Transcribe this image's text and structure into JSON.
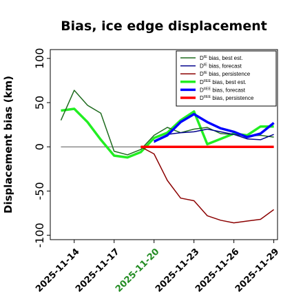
{
  "chart_data": {
    "type": "line",
    "title": "Bias, ice edge displacement",
    "ylabel": "Displacement bias (km)",
    "xlabel": "",
    "ylim": [
      -105,
      110
    ],
    "yticks": [
      -100,
      -50,
      0,
      50,
      100
    ],
    "xticks": [
      "2025-11-14",
      "2025-11-17",
      "2025-11-20",
      "2025-11-23",
      "2025-11-26",
      "2025-11-29"
    ],
    "highlight_xtick": "2025-11-20",
    "highlight_color": "#228b22",
    "x": [
      "2025-11-13",
      "2025-11-14",
      "2025-11-15",
      "2025-11-16",
      "2025-11-17",
      "2025-11-18",
      "2025-11-19",
      "2025-11-20",
      "2025-11-21",
      "2025-11-22",
      "2025-11-23",
      "2025-11-24",
      "2025-11-25",
      "2025-11-26",
      "2025-11-27",
      "2025-11-28",
      "2025-11-29"
    ],
    "reference_line": {
      "y": 0,
      "x_start": "2025-11-13",
      "x_end": "2025-11-29",
      "color": "#555555"
    },
    "legend_position": "top-right",
    "series": [
      {
        "name": "D^IE bias, best est.",
        "sup": "IE",
        "label": "bias, best est.",
        "color": "#1e6b1e",
        "width": 1.5,
        "values": [
          30,
          64,
          47,
          38,
          -5,
          -9,
          -3,
          13,
          22,
          16,
          20,
          22,
          15,
          14,
          12,
          13,
          11
        ]
      },
      {
        "name": "D^IE bias, forecast",
        "sup": "IE",
        "label": "bias, forecast",
        "color": "#00008b",
        "width": 1.5,
        "values": [
          null,
          null,
          null,
          null,
          null,
          null,
          null,
          5,
          14,
          16,
          17,
          20,
          17,
          14,
          9,
          8,
          14
        ]
      },
      {
        "name": "D^IE bias, persistence",
        "sup": "IE",
        "label": "bias, persistence",
        "color": "#8b0000",
        "width": 1.5,
        "values": [
          null,
          null,
          null,
          null,
          null,
          null,
          0,
          -8,
          -38,
          -58,
          -61,
          -78,
          -83,
          -86,
          -84,
          -82,
          -71
        ]
      },
      {
        "name": "D^IIEE bias, best est.",
        "sup": "IIEE",
        "label": "bias, best est.",
        "color": "#22ee22",
        "width": 3.5,
        "values": [
          41,
          43,
          28,
          8,
          -10,
          -12,
          -6,
          10,
          16,
          30,
          40,
          3,
          9,
          15,
          13,
          23,
          23
        ]
      },
      {
        "name": "D^IIEE bias, forecast",
        "sup": "IIEE",
        "label": "bias, forecast",
        "color": "#0000ff",
        "width": 3.5,
        "values": [
          null,
          null,
          null,
          null,
          null,
          null,
          null,
          6,
          13,
          28,
          37,
          28,
          21,
          17,
          11,
          15,
          27
        ]
      },
      {
        "name": "D^IIEE bias, persistence",
        "sup": "IIEE",
        "label": "bias, persistence",
        "color": "#ff0000",
        "width": 3.5,
        "values": [
          null,
          null,
          null,
          null,
          null,
          null,
          0,
          0,
          0,
          0,
          0,
          0,
          0,
          0,
          0,
          0,
          0
        ]
      }
    ]
  }
}
